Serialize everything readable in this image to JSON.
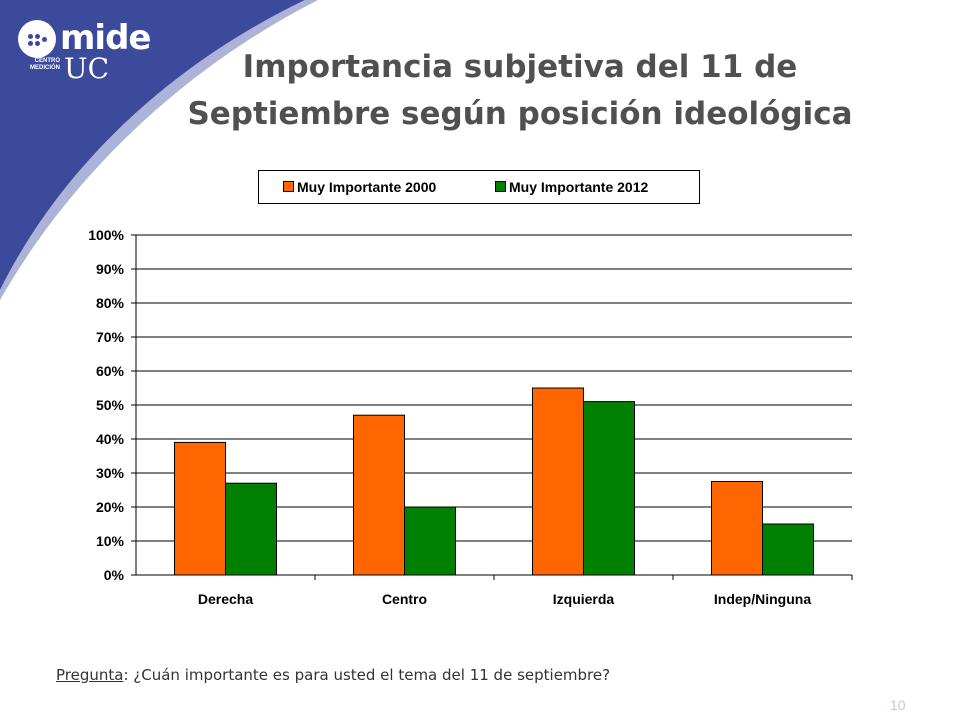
{
  "logo": {
    "word": "mide",
    "sub": "CENTRO MEDICIÓN",
    "uc": "UC"
  },
  "title": "Importancia subjetiva del 11 de Septiembre según posición ideológica",
  "question": {
    "label": "Pregunta",
    "text": ": ¿Cuán importante es para usted el tema del 11 de septiembre?"
  },
  "page_number": "10",
  "colors": {
    "series_2000": "#ff6600",
    "series_2012": "#008000",
    "band": "#3b4a9a"
  },
  "chart_data": {
    "type": "bar",
    "title": "Importancia subjetiva del 11 de Septiembre según posición ideológica",
    "categories": [
      "Derecha",
      "Centro",
      "Izquierda",
      "Indep/Ninguna"
    ],
    "series": [
      {
        "name": "Muy Importante 2000",
        "values": [
          39,
          47,
          55,
          27.5
        ]
      },
      {
        "name": "Muy Importante 2012",
        "values": [
          27,
          20,
          51,
          15
        ]
      }
    ],
    "yticks": [
      "0%",
      "10%",
      "20%",
      "30%",
      "40%",
      "50%",
      "60%",
      "70%",
      "80%",
      "90%",
      "100%"
    ],
    "ylim": [
      0,
      100
    ],
    "grid": true,
    "legend": "top"
  }
}
